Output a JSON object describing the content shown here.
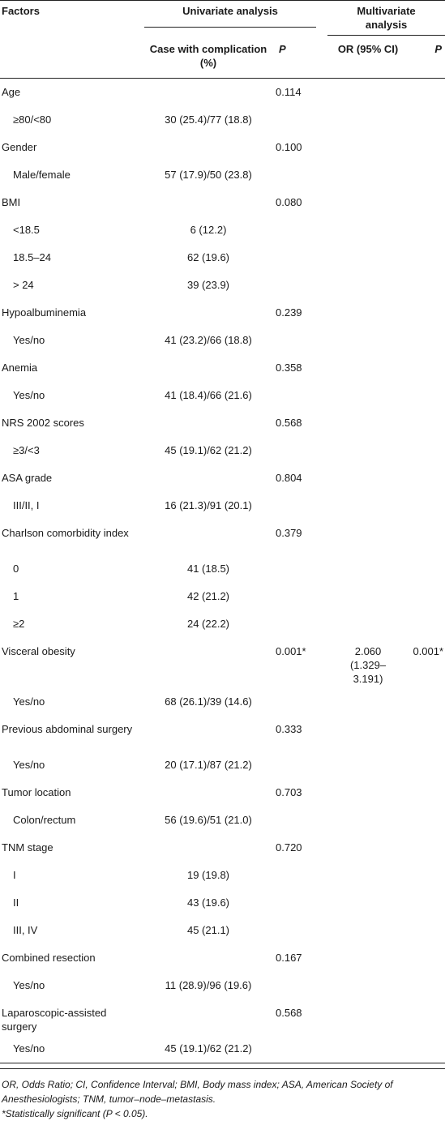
{
  "header": {
    "factors": "Factors",
    "univariate": "Univariate analysis",
    "multivariate": "Multivariate analysis",
    "case_with_complication": "Case with complication (%)",
    "p": "P",
    "or": "OR (95% CI)",
    "p2": "P"
  },
  "rows": [
    {
      "label": "Age",
      "case": "",
      "p": "0.114",
      "or": "",
      "p2": "",
      "sub": false
    },
    {
      "label": "≥80/<80",
      "case": "30 (25.4)/77 (18.8)",
      "p": "",
      "or": "",
      "p2": "",
      "sub": true
    },
    {
      "label": "Gender",
      "case": "",
      "p": "0.100",
      "or": "",
      "p2": "",
      "sub": false
    },
    {
      "label": "Male/female",
      "case": "57 (17.9)/50 (23.8)",
      "p": "",
      "or": "",
      "p2": "",
      "sub": true
    },
    {
      "label": "BMI",
      "case": "",
      "p": "0.080",
      "or": "",
      "p2": "",
      "sub": false
    },
    {
      "label": "<18.5",
      "case": "6 (12.2)",
      "p": "",
      "or": "",
      "p2": "",
      "sub": true
    },
    {
      "label": "18.5–24",
      "case": "62 (19.6)",
      "p": "",
      "or": "",
      "p2": "",
      "sub": true
    },
    {
      "label": "> 24",
      "case": "39 (23.9)",
      "p": "",
      "or": "",
      "p2": "",
      "sub": true
    },
    {
      "label": "Hypoalbuminemia",
      "case": "",
      "p": "0.239",
      "or": "",
      "p2": "",
      "sub": false
    },
    {
      "label": "Yes/no",
      "case": "41 (23.2)/66 (18.8)",
      "p": "",
      "or": "",
      "p2": "",
      "sub": true
    },
    {
      "label": "Anemia",
      "case": "",
      "p": "0.358",
      "or": "",
      "p2": "",
      "sub": false
    },
    {
      "label": "Yes/no",
      "case": "41 (18.4)/66 (21.6)",
      "p": "",
      "or": "",
      "p2": "",
      "sub": true
    },
    {
      "label": "NRS 2002 scores",
      "case": "",
      "p": "0.568",
      "or": "",
      "p2": "",
      "sub": false
    },
    {
      "label": "≥3/<3",
      "case": "45 (19.1)/62 (21.2)",
      "p": "",
      "or": "",
      "p2": "",
      "sub": true
    },
    {
      "label": "ASA grade",
      "case": "",
      "p": "0.804",
      "or": "",
      "p2": "",
      "sub": false
    },
    {
      "label": "III/II, I",
      "case": "16 (21.3)/91 (20.1)",
      "p": "",
      "or": "",
      "p2": "",
      "sub": true
    },
    {
      "label": "Charlson comorbidity index",
      "case": "",
      "p": "0.379",
      "or": "",
      "p2": "",
      "sub": false,
      "tall": 2
    },
    {
      "label": "0",
      "case": "41 (18.5)",
      "p": "",
      "or": "",
      "p2": "",
      "sub": true
    },
    {
      "label": "1",
      "case": "42 (21.2)",
      "p": "",
      "or": "",
      "p2": "",
      "sub": true
    },
    {
      "label": "≥2",
      "case": "24 (22.2)",
      "p": "",
      "or": "",
      "p2": "",
      "sub": true
    },
    {
      "label": "Visceral obesity",
      "case": "",
      "p": "0.001*",
      "or": "2.060 (1.329–3.191)",
      "p2": "0.001*",
      "sub": false,
      "tall": 3
    },
    {
      "label": "Yes/no",
      "case": "68 (26.1)/39 (14.6)",
      "p": "",
      "or": "",
      "p2": "",
      "sub": true
    },
    {
      "label": "Previous abdominal surgery",
      "case": "",
      "p": "0.333",
      "or": "",
      "p2": "",
      "sub": false,
      "tall": 2
    },
    {
      "label": "Yes/no",
      "case": "20 (17.1)/87 (21.2)",
      "p": "",
      "or": "",
      "p2": "",
      "sub": true
    },
    {
      "label": "Tumor location",
      "case": "",
      "p": "0.703",
      "or": "",
      "p2": "",
      "sub": false
    },
    {
      "label": "Colon/rectum",
      "case": "56 (19.6)/51 (21.0)",
      "p": "",
      "or": "",
      "p2": "",
      "sub": true
    },
    {
      "label": "TNM stage",
      "case": "",
      "p": "0.720",
      "or": "",
      "p2": "",
      "sub": false
    },
    {
      "label": "I",
      "case": "19 (19.8)",
      "p": "",
      "or": "",
      "p2": "",
      "sub": true
    },
    {
      "label": "II",
      "case": "43 (19.6)",
      "p": "",
      "or": "",
      "p2": "",
      "sub": true
    },
    {
      "label": "III, IV",
      "case": "45 (21.1)",
      "p": "",
      "or": "",
      "p2": "",
      "sub": true
    },
    {
      "label": "Combined resection",
      "case": "",
      "p": "0.167",
      "or": "",
      "p2": "",
      "sub": false
    },
    {
      "label": "Yes/no",
      "case": "11 (28.9)/96 (19.6)",
      "p": "",
      "or": "",
      "p2": "",
      "sub": true
    },
    {
      "label": "Laparoscopic-assisted surgery",
      "case": "",
      "p": "0.568",
      "or": "",
      "p2": "",
      "sub": false,
      "tall": 2
    },
    {
      "label": "Yes/no",
      "case": "45 (19.1)/62 (21.2)",
      "p": "",
      "or": "",
      "p2": "",
      "sub": true
    }
  ],
  "footer": {
    "abbreviations": "OR, Odds Ratio; CI, Confidence Interval; BMI, Body mass index; ASA, American Society of Anesthesiologists; TNM, tumor–node–metastasis.",
    "significance": "*Statistically significant (P < 0.05)."
  }
}
